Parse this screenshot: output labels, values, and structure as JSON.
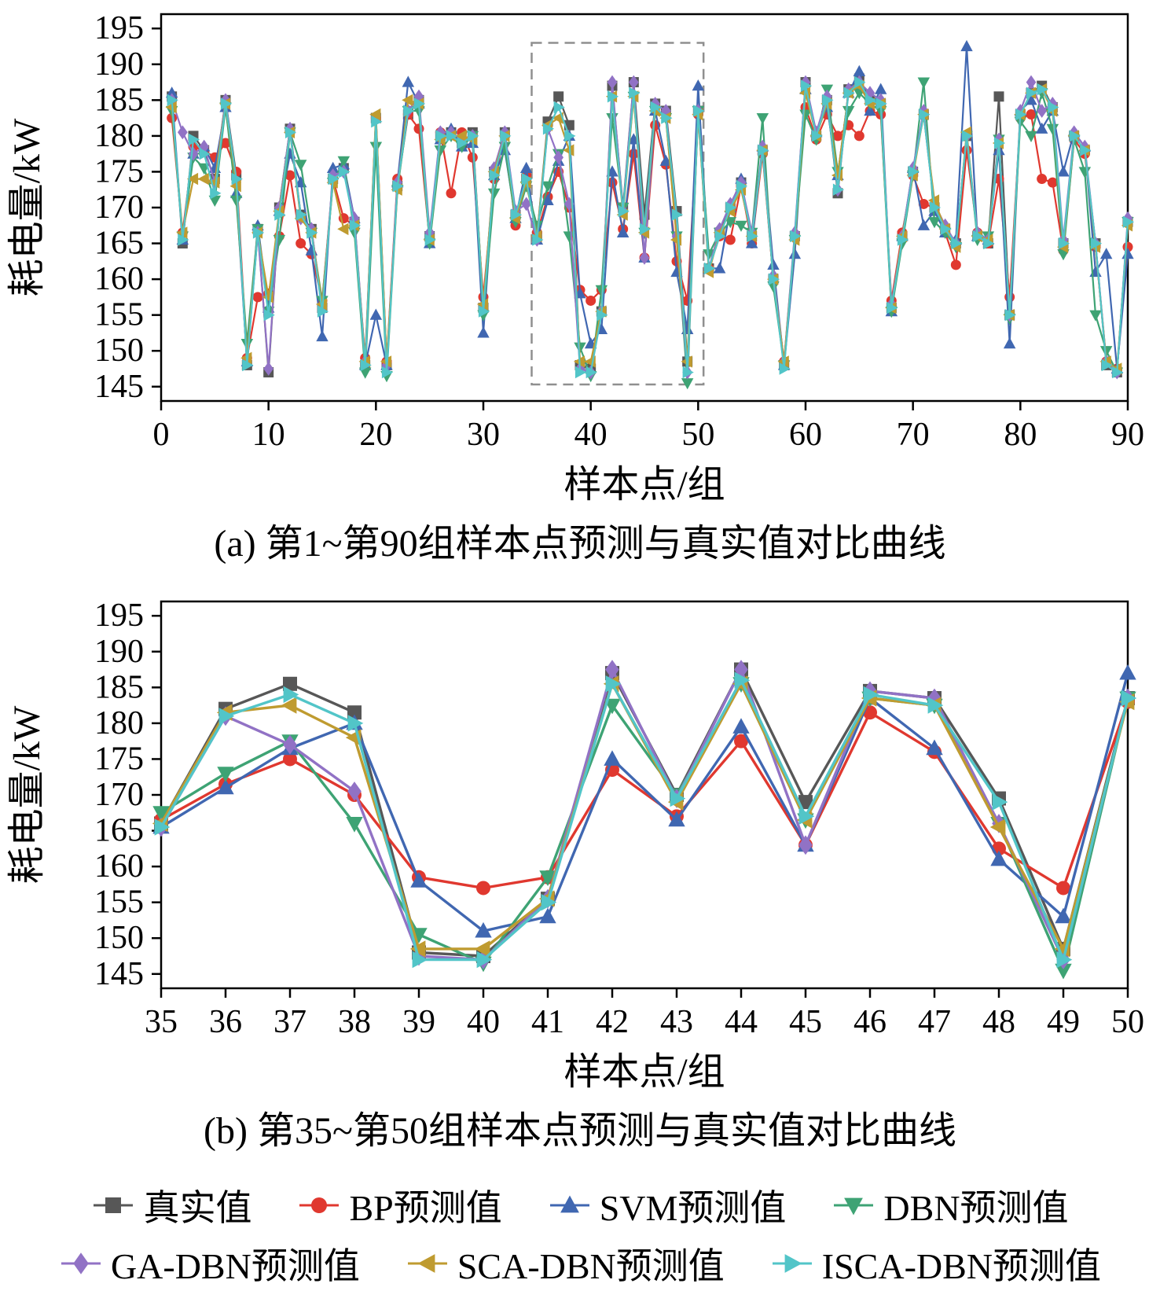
{
  "series_meta": [
    {
      "key": "actual",
      "label": "真实值",
      "color": "#575757",
      "marker": "square"
    },
    {
      "key": "bp",
      "label": "BP预测值",
      "color": "#e0382f",
      "marker": "circle"
    },
    {
      "key": "svm",
      "label": "SVM预测值",
      "color": "#4067b1",
      "marker": "triangle-up"
    },
    {
      "key": "dbn",
      "label": "DBN预测值",
      "color": "#3ea374",
      "marker": "triangle-down"
    },
    {
      "key": "ga",
      "label": "GA-DBN预测值",
      "color": "#9172c5",
      "marker": "diamond"
    },
    {
      "key": "sca",
      "label": "SCA-DBN预测值",
      "color": "#bf9b30",
      "marker": "triangle-left"
    },
    {
      "key": "isca",
      "label": "ISCA-DBN预测值",
      "color": "#52c5c8",
      "marker": "triangle-right"
    }
  ],
  "chart_data": [
    {
      "id": "a",
      "type": "line",
      "caption": "(a) 第1~第90组样本点预测与真实值对比曲线",
      "xlabel": "样本点/组",
      "ylabel": "耗电量/kW",
      "x_start": 1,
      "xlim": [
        0,
        90
      ],
      "ylim": [
        145,
        195
      ],
      "x_ticks": [
        0,
        10,
        20,
        30,
        40,
        50,
        60,
        70,
        80,
        90
      ],
      "y_ticks": [
        145,
        150,
        155,
        160,
        165,
        170,
        175,
        180,
        185,
        190,
        195
      ],
      "grid": false,
      "highlight_box": {
        "x0": 34.5,
        "x1": 50.5,
        "y0": 145.3,
        "y1": 193
      },
      "series": {
        "actual": [
          185.5,
          165,
          180,
          178,
          174,
          185,
          174.5,
          148,
          167,
          147,
          170,
          181,
          169,
          167,
          156,
          174,
          175.5,
          168,
          148,
          182.5,
          148,
          173,
          183,
          185,
          166,
          180,
          180.5,
          179,
          180.5,
          156,
          175,
          180.5,
          169,
          174,
          166,
          182,
          185.5,
          181.5,
          148,
          147.5,
          155.5,
          187,
          170,
          187.5,
          169,
          184.5,
          183.5,
          169.5,
          148.5,
          183.5,
          161.5,
          166.5,
          170,
          173.5,
          166,
          178,
          160,
          148,
          166,
          187.5,
          180,
          185,
          172,
          186.5,
          188,
          185,
          184.5,
          156,
          166,
          175,
          183,
          170,
          167,
          165,
          180,
          166,
          165,
          185.5,
          155,
          183,
          186,
          187,
          184,
          165,
          180,
          178,
          165,
          148,
          147,
          168
        ],
        "bp": [
          182.5,
          166.5,
          178.5,
          178,
          177,
          179,
          175,
          149,
          157.5,
          158,
          166,
          174.5,
          165,
          163.5,
          157,
          174,
          168.5,
          167.5,
          149,
          182.5,
          148.5,
          174,
          183,
          181,
          165.5,
          180.5,
          172,
          180.5,
          177,
          157.5,
          174,
          180,
          167.5,
          174.5,
          166.5,
          171.5,
          175,
          170,
          158.5,
          157,
          158.5,
          173.5,
          167,
          177.5,
          163,
          181.5,
          176,
          162.5,
          157,
          183,
          161.5,
          166,
          165.5,
          173,
          165,
          177.5,
          160,
          148.5,
          166,
          184,
          179.5,
          183,
          180,
          181.5,
          180,
          183.5,
          183,
          157,
          166.5,
          174.5,
          170.5,
          170,
          166.5,
          162,
          178,
          166.5,
          165,
          174,
          157.5,
          182.5,
          183,
          174,
          173.5,
          164,
          179.5,
          177.5,
          164.5,
          148.5,
          147.5,
          164.5
        ],
        "svm": [
          186,
          165.5,
          177.5,
          178.5,
          175.5,
          184,
          172,
          148.5,
          167.5,
          156,
          169.5,
          177.5,
          173.5,
          164,
          152,
          175.5,
          176,
          168.5,
          148,
          155,
          148,
          173.5,
          187.5,
          184.5,
          165,
          179.5,
          181,
          178.5,
          179,
          152.5,
          174.5,
          178,
          168.5,
          175.5,
          165.5,
          171,
          176.5,
          180,
          158,
          151,
          153,
          175,
          166.5,
          179.5,
          163,
          183.5,
          176.5,
          161,
          153,
          187,
          161.5,
          161.5,
          170,
          174,
          165,
          178.5,
          162,
          148,
          163.5,
          186.5,
          180.5,
          184,
          174.5,
          186,
          189,
          183.5,
          186.5,
          155.5,
          166,
          175.5,
          167.5,
          169.5,
          166.5,
          165.5,
          192.5,
          166,
          165.5,
          178,
          151,
          183.5,
          185,
          181,
          183.5,
          175,
          180.5,
          178.5,
          161,
          163.5,
          147.5,
          163.5
        ],
        "dbn": [
          183.5,
          166,
          177,
          175.5,
          171,
          184,
          171,
          151,
          167,
          155.5,
          165.5,
          180.5,
          176,
          166.5,
          157,
          173.5,
          176.5,
          166.5,
          147,
          178.5,
          146.5,
          172.5,
          183.5,
          183.5,
          165,
          178,
          180,
          178.5,
          180,
          155,
          172,
          178.5,
          168,
          173,
          167.5,
          173,
          177.5,
          166,
          150.5,
          146.5,
          158.5,
          182.5,
          170,
          185.5,
          166.5,
          183.5,
          182.5,
          166,
          145.5,
          183.5,
          163.5,
          166.5,
          168,
          167.5,
          166.5,
          182.5,
          159,
          148,
          165.5,
          183,
          179.5,
          186.5,
          175,
          183.5,
          186,
          184.5,
          183.5,
          155.5,
          165,
          174.5,
          187.5,
          168,
          166.5,
          164.5,
          180,
          165.5,
          166,
          179.5,
          154.5,
          182,
          180,
          186,
          181,
          163.5,
          179.5,
          175,
          155,
          150,
          147,
          168
        ],
        "ga": [
          185,
          180.5,
          177.5,
          178.5,
          173.5,
          185,
          173.5,
          148.5,
          166.5,
          147.5,
          170,
          181,
          168.5,
          167,
          156,
          174.5,
          175,
          168.5,
          148.5,
          182.5,
          148,
          173.5,
          183.5,
          185.5,
          166.5,
          180.5,
          180.5,
          179.5,
          180,
          156,
          175.5,
          180.5,
          169.5,
          170.5,
          165.5,
          181,
          177,
          170.5,
          147.5,
          147,
          155.5,
          187.5,
          169.5,
          187.5,
          163,
          184.5,
          183.5,
          166,
          147,
          183.5,
          161.5,
          167,
          170.5,
          173.5,
          166.5,
          178.5,
          160.5,
          148.5,
          166.5,
          187.5,
          180.5,
          185.5,
          172.5,
          186.5,
          187.5,
          186,
          185,
          156.5,
          166,
          175.5,
          183.5,
          170.5,
          167.5,
          165,
          180,
          166.5,
          165.5,
          179.5,
          155,
          183.5,
          187.5,
          183.5,
          184.5,
          165.5,
          180.5,
          178.5,
          165,
          148.5,
          147,
          168.5
        ],
        "sca": [
          184,
          166.5,
          174,
          174,
          173.5,
          184.5,
          173,
          149,
          166.5,
          157.5,
          169.5,
          180.5,
          168.5,
          166.5,
          156.5,
          173.5,
          167,
          167.5,
          148.5,
          183,
          148.5,
          172.5,
          185,
          184.5,
          165.5,
          179.5,
          180,
          180,
          179.5,
          156.5,
          175,
          180,
          168.5,
          173.5,
          166,
          181.5,
          182.5,
          178,
          148.5,
          148.5,
          155.5,
          185.5,
          169,
          185.5,
          166.5,
          183.5,
          182.5,
          165.5,
          148.5,
          183,
          161,
          166.5,
          169.5,
          172.5,
          166,
          178,
          160,
          148.5,
          165.5,
          186,
          180,
          184.5,
          174.5,
          186,
          187,
          184.5,
          184.5,
          156,
          166,
          174.5,
          183,
          171,
          167,
          164.5,
          180.5,
          166,
          165.5,
          179,
          155,
          183,
          186,
          186.5,
          183.5,
          164.5,
          180,
          178,
          164.5,
          148.5,
          147.5,
          167.5
        ],
        "isca": [
          185,
          165.5,
          179.5,
          177.5,
          172,
          184.5,
          174,
          148,
          166.5,
          155,
          169,
          180.5,
          169,
          166.5,
          155.5,
          174,
          175,
          167.5,
          148,
          182,
          147,
          173,
          183.5,
          184.5,
          165.5,
          180,
          180,
          179,
          180,
          155.5,
          174.5,
          180,
          169,
          174,
          165.5,
          181,
          184,
          180,
          147,
          147,
          155,
          185.5,
          169.5,
          186,
          167,
          184,
          182.5,
          169,
          147,
          183.5,
          161.5,
          166,
          170,
          173,
          166,
          178,
          160,
          147.5,
          166,
          187,
          180,
          185,
          172.5,
          186,
          187.5,
          185,
          184.5,
          156,
          165.5,
          175,
          183,
          170,
          167,
          165,
          180,
          166,
          165,
          179,
          155,
          183,
          186,
          186.5,
          184,
          165,
          180,
          178,
          165,
          148,
          147,
          168
        ]
      }
    },
    {
      "id": "b",
      "type": "line",
      "caption": "(b) 第35~第50组样本点预测与真实值对比曲线",
      "xlabel": "样本点/组",
      "ylabel": "耗电量/kW",
      "x_start": 35,
      "xlim": [
        35,
        50
      ],
      "ylim": [
        145,
        195
      ],
      "x_ticks": [
        35,
        36,
        37,
        38,
        39,
        40,
        41,
        42,
        43,
        44,
        45,
        46,
        47,
        48,
        49,
        50
      ],
      "y_ticks": [
        145,
        150,
        155,
        160,
        165,
        170,
        175,
        180,
        185,
        190,
        195
      ],
      "grid": false,
      "series": {
        "actual": [
          166,
          182,
          185.5,
          181.5,
          148,
          147.5,
          155.5,
          187,
          170,
          187.5,
          169,
          184.5,
          183.5,
          169.5,
          148.5,
          183.5
        ],
        "bp": [
          166.5,
          171.5,
          175,
          170,
          158.5,
          157,
          158.5,
          173.5,
          167,
          177.5,
          163,
          181.5,
          176,
          162.5,
          157,
          183
        ],
        "svm": [
          165.5,
          171,
          176.5,
          180,
          158,
          151,
          153,
          175,
          166.5,
          179.5,
          163,
          183.5,
          176.5,
          161,
          153,
          187
        ],
        "dbn": [
          167.5,
          173,
          177.5,
          166,
          150.5,
          146.5,
          158.5,
          182.5,
          170,
          185.5,
          166.5,
          183.5,
          182.5,
          166,
          145.5,
          183.5
        ],
        "ga": [
          165.5,
          181,
          177,
          170.5,
          147.5,
          147,
          155.5,
          187.5,
          169.5,
          187.5,
          163,
          184.5,
          183.5,
          166,
          147,
          183.5
        ],
        "sca": [
          166,
          181.5,
          182.5,
          178,
          148.5,
          148.5,
          155.5,
          185.5,
          169,
          185.5,
          166.5,
          183.5,
          182.5,
          165.5,
          148.5,
          183
        ],
        "isca": [
          165.5,
          181,
          184,
          180,
          147,
          147,
          155,
          185.5,
          169.5,
          186,
          167,
          184,
          182.5,
          169,
          147,
          183.5
        ]
      }
    }
  ]
}
